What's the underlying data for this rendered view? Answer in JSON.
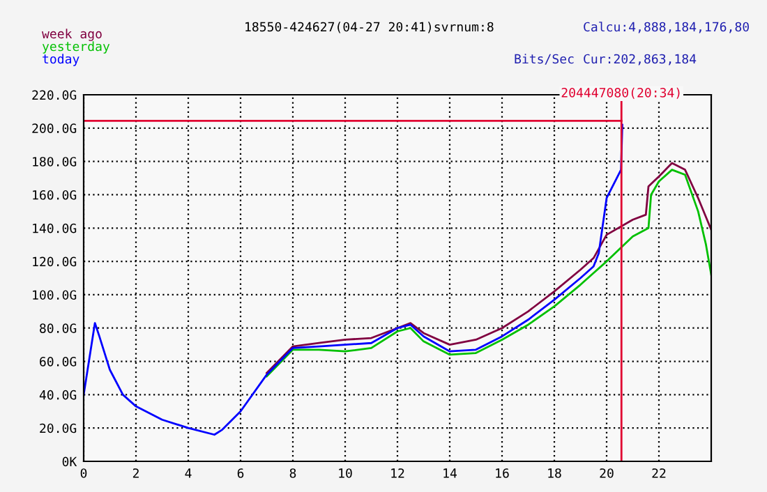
{
  "chart_data": {
    "type": "line",
    "title": "18550-424627(04-27 20:41)svrnum:8",
    "xlim": [
      0,
      24
    ],
    "xticks": [
      0,
      2,
      4,
      6,
      8,
      10,
      12,
      14,
      16,
      18,
      20,
      22
    ],
    "ylim": [
      0,
      220
    ],
    "yticks": [
      {
        "value": 0,
        "label": "0K"
      },
      {
        "value": 20,
        "label": "20.0G"
      },
      {
        "value": 40,
        "label": "40.0G"
      },
      {
        "value": 60,
        "label": "60.0G"
      },
      {
        "value": 80,
        "label": "80.0G"
      },
      {
        "value": 100,
        "label": "100.0G"
      },
      {
        "value": 120,
        "label": "120.0G"
      },
      {
        "value": 140,
        "label": "140.0G"
      },
      {
        "value": 160,
        "label": "160.0G"
      },
      {
        "value": 180,
        "label": "180.0G"
      },
      {
        "value": 200,
        "label": "200.0G"
      },
      {
        "value": 220,
        "label": "220.0G"
      }
    ],
    "grid": true,
    "legend": "top left",
    "line_style": "solid",
    "annotations": [
      "Calcu:4,888,184,176,80",
      "Bits/Sec",
      "Cur:202,863,184",
      {
        "text": "204447080(20:34)",
        "x": 20.5667,
        "y": 204.4
      }
    ],
    "ref_lines": [
      {
        "axis": "x",
        "value": 20.5667,
        "color": "#e00030"
      },
      {
        "axis": "y",
        "value": 204.4,
        "color": "#e00030"
      }
    ],
    "series": [
      {
        "name": "week ago",
        "color": "#800040",
        "x": [
          7,
          8,
          9,
          10,
          11,
          12,
          12.5,
          13,
          14,
          15,
          16,
          17,
          18,
          19,
          19.5,
          20,
          21,
          21.5,
          21.6,
          22,
          22.5,
          23,
          23.5,
          24
        ],
        "values": [
          53,
          69,
          71,
          73,
          74,
          80,
          83,
          77,
          70,
          73,
          80,
          90,
          102,
          115,
          122,
          136,
          145,
          148,
          165,
          171,
          179,
          175,
          158,
          139
        ]
      },
      {
        "name": "yesterday",
        "color": "#00c000",
        "x": [
          7,
          8,
          9,
          10,
          11,
          12,
          12.5,
          13,
          14,
          15,
          16,
          17,
          18,
          19,
          19.5,
          20,
          21,
          21.6,
          21.7,
          22,
          22.5,
          23,
          23.5,
          23.8,
          24
        ],
        "values": [
          51,
          67,
          67,
          66,
          68,
          78,
          80,
          72,
          64,
          65,
          73,
          82,
          93,
          106,
          113,
          120,
          135,
          140,
          160,
          168,
          175,
          172,
          150,
          130,
          112
        ]
      },
      {
        "name": "today",
        "color": "#0000ff",
        "x": [
          0,
          0.43,
          0.6,
          1,
          1.5,
          2,
          3,
          4,
          5,
          5.3,
          6,
          7,
          8,
          9,
          10,
          11,
          12,
          12.5,
          13,
          14,
          15,
          16,
          17,
          18,
          19,
          19.5,
          19.7,
          20,
          20.55,
          20.6
        ],
        "values": [
          40,
          83,
          75,
          55,
          40,
          33,
          25,
          20,
          16,
          19,
          30,
          52,
          68,
          69,
          70,
          71,
          80,
          82,
          75,
          66,
          67,
          75,
          85,
          97,
          110,
          117,
          125,
          158,
          175,
          202
        ]
      }
    ]
  }
}
